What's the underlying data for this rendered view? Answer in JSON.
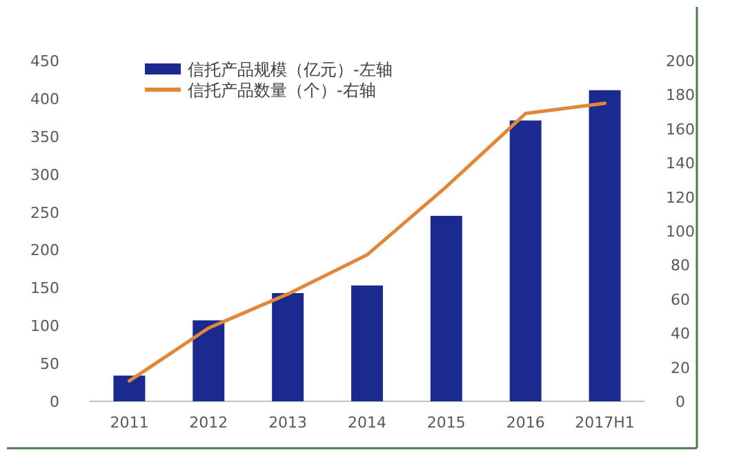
{
  "chart_data": {
    "type": "bar",
    "categories": [
      "2011",
      "2012",
      "2013",
      "2014",
      "2015",
      "2016",
      "2017H1"
    ],
    "series": [
      {
        "name": "信托产品规模（亿元）-左轴",
        "color": "#1b2a8f",
        "values": [
          34,
          107,
          143,
          153,
          245,
          371,
          411
        ]
      },
      {
        "name": "信托产品数量（个）-右轴",
        "type": "line",
        "axis": "y2",
        "color": "#e0873a",
        "values": [
          12,
          43,
          63,
          86,
          126,
          169,
          175
        ]
      }
    ],
    "ylim": [
      0,
      450
    ],
    "yticks": [
      0,
      50,
      100,
      150,
      200,
      250,
      300,
      350,
      400,
      450
    ],
    "y2lim": [
      0,
      200
    ],
    "y2ticks": [
      0,
      20,
      40,
      60,
      80,
      100,
      120,
      140,
      160,
      180,
      200
    ],
    "grid": false,
    "legend": "top left",
    "marker": "none",
    "line_style": "solid"
  }
}
